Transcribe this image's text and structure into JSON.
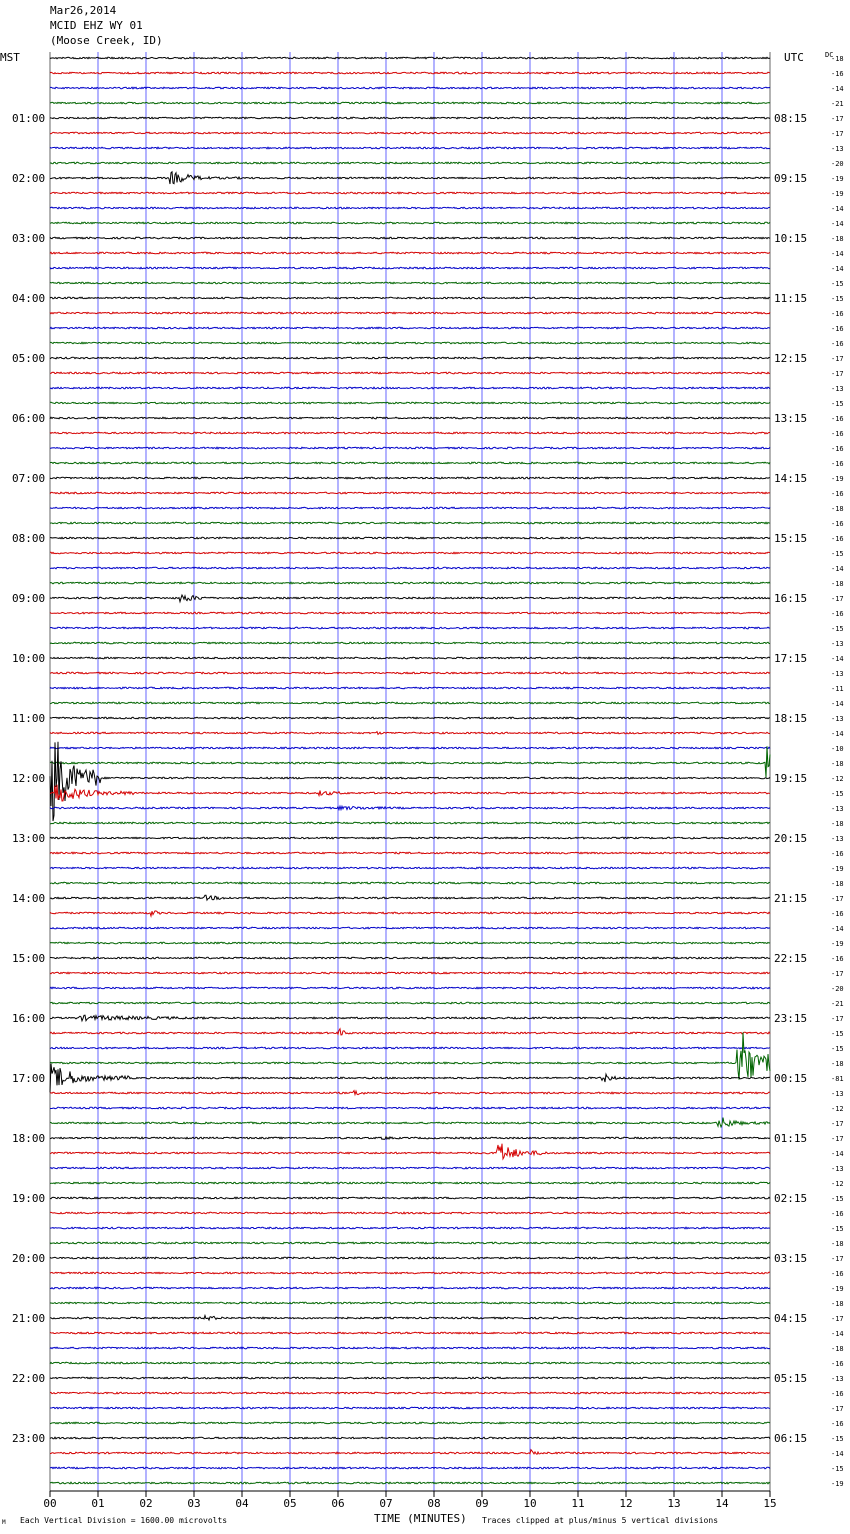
{
  "header": {
    "date": "Mar26,2014",
    "station": "MCID EHZ WY 01",
    "location": "(Moose Creek, ID)"
  },
  "labels": {
    "left_timezone": "MST",
    "right_timezone": "UTC",
    "dc_label": "DC",
    "x_axis_title": "TIME (MINUTES)",
    "scale_note": "Each Vertical Division = 1600.00 microvolts",
    "clip_note": "Traces clipped at plus/minus 5 vertical divisions",
    "corner_mark": "M"
  },
  "colors": {
    "trace_cycle": [
      "#000000",
      "#d40000",
      "#0000c8",
      "#006400"
    ],
    "grid_vertical": "#0000ff",
    "grid_horizontal": "#000000"
  },
  "chart_data": {
    "type": "line",
    "x_ticks": [
      "00",
      "01",
      "02",
      "03",
      "04",
      "05",
      "06",
      "07",
      "08",
      "09",
      "10",
      "11",
      "12",
      "13",
      "14",
      "15"
    ],
    "xlim": [
      0,
      15
    ],
    "left_hour_labels": [
      "01:00",
      "02:00",
      "03:00",
      "04:00",
      "05:00",
      "06:00",
      "07:00",
      "08:00",
      "09:00",
      "10:00",
      "11:00",
      "12:00",
      "13:00",
      "14:00",
      "15:00",
      "16:00",
      "17:00",
      "18:00",
      "19:00",
      "20:00",
      "21:00",
      "22:00",
      "23:00"
    ],
    "right_hour_labels": [
      "08:15",
      "09:15",
      "10:15",
      "11:15",
      "12:15",
      "13:15",
      "14:15",
      "15:15",
      "16:15",
      "17:15",
      "18:15",
      "19:15",
      "20:15",
      "21:15",
      "22:15",
      "23:15",
      "00:15",
      "01:15",
      "02:15",
      "03:15",
      "04:15",
      "05:15",
      "06:15"
    ],
    "dc_offsets": [
      "-18",
      "-16",
      "-14",
      "-21",
      "-17",
      "-17",
      "-13",
      "-20",
      "-19",
      "-19",
      "-14",
      "-14",
      "-18",
      "-14",
      "-14",
      "-15",
      "-15",
      "-16",
      "-16",
      "-16",
      "-17",
      "-17",
      "-13",
      "-15",
      "-16",
      "-16",
      "-16",
      "-16",
      "-19",
      "-16",
      "-18",
      "-16",
      "-16",
      "-15",
      "-14",
      "-18",
      "-17",
      "-16",
      "-15",
      "-13",
      "-14",
      "-13",
      "-11",
      "-14",
      "-13",
      "-14",
      "-10",
      "-18",
      "-12",
      "-15",
      "-13",
      "-18",
      "-13",
      "-16",
      "-19",
      "-18",
      "-17",
      "-16",
      "-14",
      "-19",
      "-16",
      "-17",
      "-20",
      "-21",
      "-17",
      "-15",
      "-15",
      "-18",
      "-81",
      "-13",
      "-12",
      "-17",
      "-17",
      "-14",
      "-13",
      "-12",
      "-15",
      "-16",
      "-15",
      "-18",
      "-17",
      "-16",
      "-19",
      "-18",
      "-17",
      "-14",
      "-18",
      "-16",
      "-13",
      "-16",
      "-17",
      "-16",
      "-15",
      "-14",
      "-15",
      "-19"
    ],
    "events": [
      {
        "row": 8,
        "minute": 2.5,
        "amplitude": 7,
        "duration": 1.5
      },
      {
        "row": 36,
        "minute": 2.7,
        "amplitude": 5,
        "duration": 1.2
      },
      {
        "row": 45,
        "minute": 6.8,
        "amplitude": 2,
        "duration": 0.5
      },
      {
        "row": 48,
        "minute": 0.0,
        "amplitude": 60,
        "duration": 1.0
      },
      {
        "row": 49,
        "minute": 0.1,
        "amplitude": 12,
        "duration": 1.6
      },
      {
        "row": 49,
        "minute": 5.6,
        "amplitude": 3,
        "duration": 1.5
      },
      {
        "row": 50,
        "minute": 6.0,
        "amplitude": 2,
        "duration": 5.0
      },
      {
        "row": 47,
        "minute": 14.9,
        "amplitude": 60,
        "duration": 0.1
      },
      {
        "row": 56,
        "minute": 3.2,
        "amplitude": 3,
        "duration": 1.5
      },
      {
        "row": 57,
        "minute": 2.1,
        "amplitude": 4,
        "duration": 0.5
      },
      {
        "row": 64,
        "minute": 0.6,
        "amplitude": 3,
        "duration": 7.0
      },
      {
        "row": 65,
        "minute": 6.0,
        "amplitude": 6,
        "duration": 0.4
      },
      {
        "row": 67,
        "minute": 14.3,
        "amplitude": 60,
        "duration": 0.7
      },
      {
        "row": 68,
        "minute": 0.0,
        "amplitude": 15,
        "duration": 1.6
      },
      {
        "row": 68,
        "minute": 11.5,
        "amplitude": 6,
        "duration": 0.6
      },
      {
        "row": 69,
        "minute": 6.3,
        "amplitude": 5,
        "duration": 0.5
      },
      {
        "row": 71,
        "minute": 13.9,
        "amplitude": 8,
        "duration": 1.0
      },
      {
        "row": 72,
        "minute": 6.9,
        "amplitude": 3,
        "duration": 0.6
      },
      {
        "row": 73,
        "minute": 9.3,
        "amplitude": 14,
        "duration": 1.0
      },
      {
        "row": 84,
        "minute": 3.2,
        "amplitude": 3,
        "duration": 1.2
      },
      {
        "row": 93,
        "minute": 10.0,
        "amplitude": 4,
        "duration": 0.4
      }
    ]
  }
}
